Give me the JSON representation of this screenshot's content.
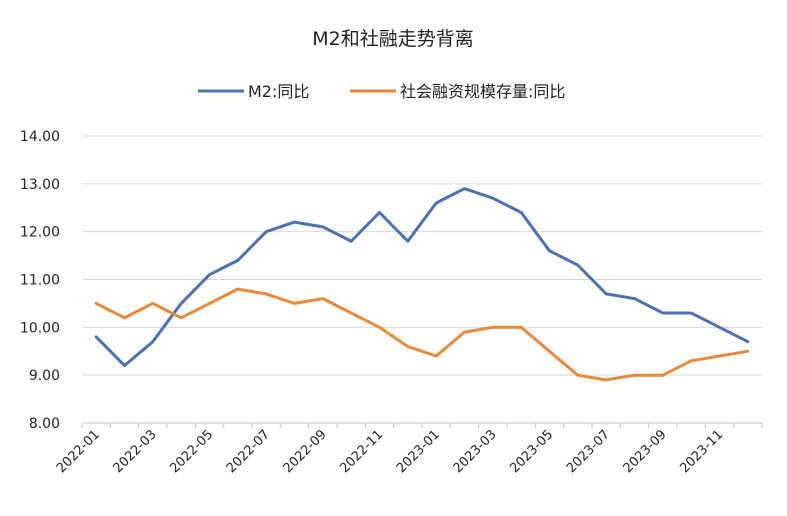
{
  "chart_data": {
    "type": "line",
    "title": "M2和社融走势背离",
    "xlabel": "",
    "ylabel": "",
    "legend_position": "top",
    "grid": true,
    "ylim": [
      8,
      14
    ],
    "yticks": [
      "8.00",
      "9.00",
      "10.00",
      "11.00",
      "12.00",
      "13.00",
      "14.00"
    ],
    "x": [
      "2022-01",
      "2022-02",
      "2022-03",
      "2022-04",
      "2022-05",
      "2022-06",
      "2022-07",
      "2022-08",
      "2022-09",
      "2022-10",
      "2022-11",
      "2022-12",
      "2023-01",
      "2023-02",
      "2023-03",
      "2023-04",
      "2023-05",
      "2023-06",
      "2023-07",
      "2023-08",
      "2023-09",
      "2023-10",
      "2023-11",
      "2023-12"
    ],
    "xtick_labels": [
      "2022-01",
      "2022-03",
      "2022-05",
      "2022-07",
      "2022-09",
      "2022-11",
      "2023-01",
      "2023-03",
      "2023-05",
      "2023-07",
      "2023-09",
      "2023-11"
    ],
    "series": [
      {
        "name": "M2:同比",
        "color": "#4A72B0",
        "values": [
          9.8,
          9.2,
          9.7,
          10.5,
          11.1,
          11.4,
          12.0,
          12.2,
          12.1,
          11.8,
          12.4,
          11.8,
          12.6,
          12.9,
          12.7,
          12.4,
          11.6,
          11.3,
          10.7,
          10.6,
          10.3,
          10.3,
          10.0,
          9.7
        ]
      },
      {
        "name": "社会融资规模存量:同比",
        "color": "#E8893A",
        "values": [
          10.5,
          10.2,
          10.5,
          10.2,
          10.5,
          10.8,
          10.7,
          10.5,
          10.6,
          10.3,
          10.0,
          9.6,
          9.4,
          9.9,
          10.0,
          10.0,
          9.5,
          9.0,
          8.9,
          9.0,
          9.0,
          9.3,
          9.4,
          9.5
        ]
      }
    ]
  }
}
